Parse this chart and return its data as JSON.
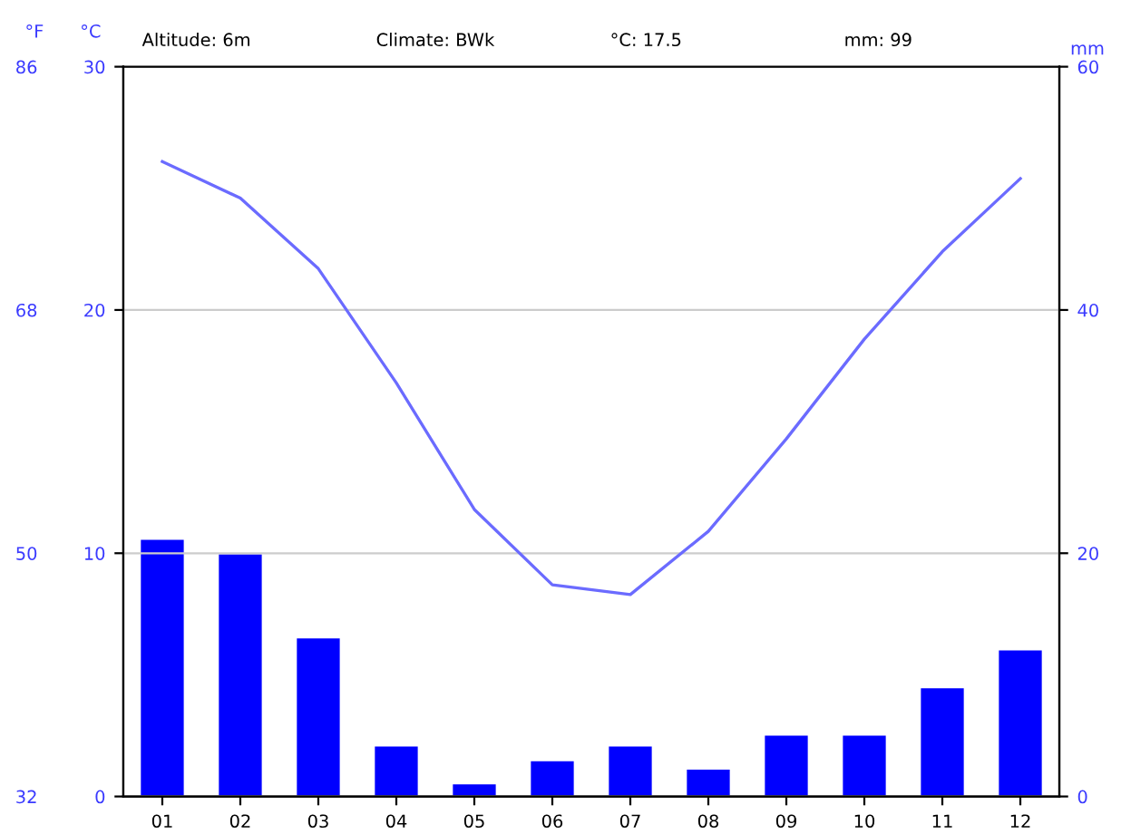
{
  "chart_data": {
    "type": "bar",
    "categories": [
      "01",
      "02",
      "03",
      "04",
      "05",
      "06",
      "07",
      "08",
      "09",
      "10",
      "11",
      "12"
    ],
    "series": [
      {
        "axis": "y2",
        "color": "#0000ff",
        "values": [
          21.1,
          19.9,
          13.0,
          4.1,
          1.0,
          2.9,
          4.1,
          2.2,
          5.0,
          5.0,
          8.9,
          12.0
        ]
      },
      {
        "type": "line",
        "axis": "y",
        "color": "#6b6bff",
        "values": [
          26.1,
          24.6,
          21.7,
          17.0,
          11.8,
          8.7,
          8.3,
          10.9,
          14.7,
          18.8,
          22.4,
          25.4
        ]
      }
    ],
    "annotations": [
      "Altitude: 6m",
      "Climate: BWk",
      "°C: 17.5",
      "mm: 99"
    ],
    "ylabel": "°C",
    "ylim": [
      0,
      30
    ],
    "yticks": [
      0,
      10,
      20,
      30
    ],
    "y2label": "mm",
    "y2lim": [
      0,
      60
    ],
    "y2ticks": [
      0,
      20,
      40,
      60
    ],
    "y3label": "°F",
    "y3lim": [
      32,
      86
    ],
    "y3ticks": [
      32,
      50,
      68,
      86
    ],
    "grid": "y",
    "marker": "none",
    "line_style": "solid"
  }
}
